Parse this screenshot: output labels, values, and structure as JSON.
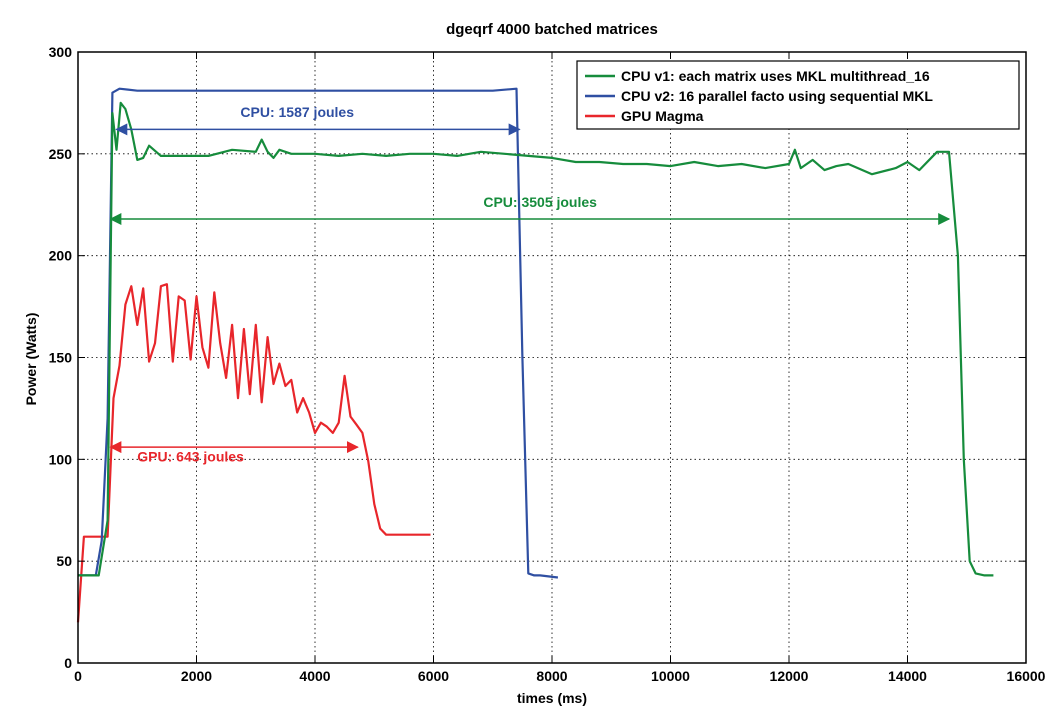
{
  "chart_data": {
    "type": "line",
    "title": "dgeqrf 4000 batched matrices",
    "xlabel": "times (ms)",
    "ylabel": "Power (Watts)",
    "xlim": [
      0,
      16000
    ],
    "ylim": [
      0,
      300
    ],
    "xticks": [
      0,
      2000,
      4000,
      6000,
      8000,
      10000,
      12000,
      14000,
      16000
    ],
    "yticks": [
      0,
      50,
      100,
      150,
      200,
      250,
      300
    ],
    "xtick_labels": [
      "0",
      "2000",
      "4000",
      "6000",
      "8000",
      "10000",
      "12000",
      "14000",
      "16000"
    ],
    "ytick_labels": [
      "0",
      "50",
      "100",
      "150",
      "200",
      "250",
      "300"
    ],
    "grid": true,
    "legend_position": "top-right",
    "series": [
      {
        "name": "CPU v1: each matrix uses MKL multithread_16",
        "color": "#168c3c",
        "x": [
          0,
          350,
          500,
          580,
          650,
          720,
          800,
          900,
          1000,
          1100,
          1200,
          1400,
          1800,
          2200,
          2600,
          3000,
          3100,
          3200,
          3300,
          3400,
          3600,
          4000,
          4400,
          4800,
          5200,
          5600,
          6000,
          6400,
          6800,
          7200,
          7600,
          8000,
          8400,
          8800,
          9200,
          9600,
          10000,
          10400,
          10800,
          11200,
          11600,
          12000,
          12100,
          12200,
          12400,
          12600,
          12800,
          13000,
          13400,
          13800,
          14000,
          14200,
          14500,
          14700,
          14850,
          14950,
          15050,
          15150,
          15300,
          15450
        ],
        "y": [
          43,
          43,
          70,
          270,
          252,
          275,
          272,
          262,
          247,
          248,
          254,
          249,
          249,
          249,
          252,
          251,
          257,
          251,
          248,
          252,
          250,
          250,
          249,
          250,
          249,
          250,
          250,
          249,
          251,
          250,
          249,
          248,
          246,
          246,
          245,
          245,
          244,
          246,
          244,
          245,
          243,
          245,
          252,
          243,
          247,
          242,
          244,
          245,
          240,
          243,
          246,
          242,
          251,
          251,
          200,
          100,
          50,
          44,
          43,
          43
        ]
      },
      {
        "name": "CPU v2: 16 parallel facto using sequential MKL",
        "color": "#2f4fa2",
        "x": [
          0,
          300,
          400,
          500,
          580,
          700,
          1000,
          2000,
          3000,
          4000,
          5000,
          6000,
          7000,
          7400,
          7500,
          7600,
          7700,
          7800,
          8100
        ],
        "y": [
          43,
          43,
          60,
          120,
          280,
          282,
          281,
          281,
          281,
          281,
          281,
          281,
          281,
          282,
          150,
          44,
          43,
          43,
          42
        ]
      },
      {
        "name": "GPU Magma",
        "color": "#e8262b",
        "x": [
          0,
          100,
          200,
          300,
          400,
          500,
          600,
          700,
          800,
          900,
          1000,
          1100,
          1200,
          1300,
          1400,
          1500,
          1600,
          1700,
          1800,
          1900,
          2000,
          2100,
          2200,
          2300,
          2400,
          2500,
          2600,
          2700,
          2800,
          2900,
          3000,
          3100,
          3200,
          3300,
          3400,
          3500,
          3600,
          3700,
          3800,
          3900,
          4000,
          4100,
          4200,
          4300,
          4400,
          4500,
          4600,
          4700,
          4800,
          4900,
          5000,
          5100,
          5200,
          5300,
          5400,
          5600,
          5950
        ],
        "y": [
          20,
          62,
          62,
          62,
          62,
          62,
          130,
          146,
          176,
          185,
          166,
          184,
          148,
          157,
          185,
          186,
          148,
          180,
          178,
          149,
          180,
          155,
          145,
          182,
          157,
          140,
          166,
          130,
          164,
          132,
          166,
          128,
          160,
          137,
          147,
          136,
          139,
          123,
          130,
          123,
          113,
          118,
          116,
          113,
          118,
          141,
          121,
          117,
          113,
          99,
          78,
          66,
          63,
          63,
          63,
          63,
          63
        ]
      }
    ],
    "annotations": [
      {
        "text": "CPU: 1587 joules",
        "color": "#2f4fa2",
        "x_from": 650,
        "x_to": 7450,
        "y": 262,
        "label_x": 3700,
        "label_y": 268
      },
      {
        "text": "CPU: 3505 joules",
        "color": "#168c3c",
        "x_from": 550,
        "x_to": 14700,
        "y": 218,
        "label_x": 7800,
        "label_y": 224
      },
      {
        "text": "GPU: 643 joules",
        "color": "#e8262b",
        "x_from": 550,
        "x_to": 4720,
        "y": 106,
        "label_x": 1900,
        "label_y": 99
      }
    ]
  }
}
